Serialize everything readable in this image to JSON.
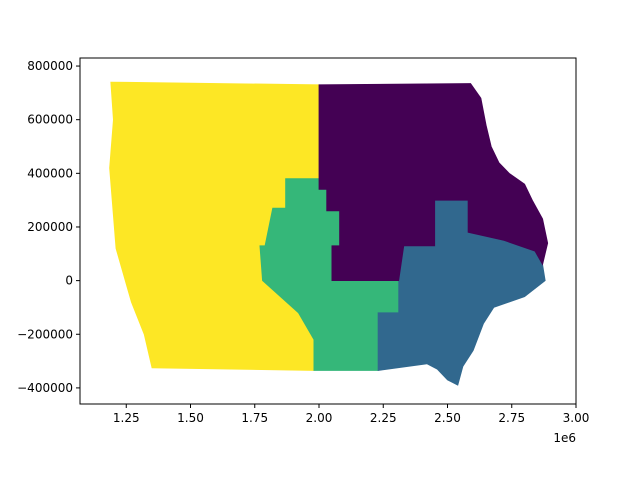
{
  "chart_data": {
    "type": "choropleth",
    "xlim": [
      1070000,
      3000000
    ],
    "ylim": [
      -460000,
      830000
    ],
    "x_ticks": [
      1250000,
      1500000,
      1750000,
      2000000,
      2250000,
      2500000,
      2750000,
      3000000
    ],
    "x_tick_labels": [
      "1.25",
      "1.50",
      "1.75",
      "2.00",
      "2.25",
      "2.50",
      "2.75",
      "3.00"
    ],
    "x_offset_label": "1e6",
    "y_ticks": [
      -400000,
      -200000,
      0,
      200000,
      400000,
      600000,
      800000
    ],
    "y_tick_labels": [
      "−400000",
      "−200000",
      "0",
      "200000",
      "400000",
      "600000",
      "800000"
    ],
    "colormap": "viridis",
    "regions": [
      {
        "color": "#fde725",
        "outline": [
          [
            1190000,
            740000
          ],
          [
            2000000,
            730000
          ],
          [
            2000000,
            380000
          ],
          [
            1870000,
            380000
          ],
          [
            1870000,
            270000
          ],
          [
            1820000,
            270000
          ],
          [
            1790000,
            130000
          ],
          [
            1770000,
            130000
          ],
          [
            1780000,
            0
          ],
          [
            1920000,
            -120000
          ],
          [
            1980000,
            -220000
          ],
          [
            1980000,
            -335000
          ],
          [
            1350000,
            -325000
          ],
          [
            1320000,
            -200000
          ],
          [
            1270000,
            -80000
          ],
          [
            1210000,
            120000
          ],
          [
            1185000,
            420000
          ],
          [
            1200000,
            600000
          ]
        ]
      },
      {
        "color": "#35b779",
        "outline": [
          [
            1870000,
            380000
          ],
          [
            2000000,
            380000
          ],
          [
            2000000,
            340000
          ],
          [
            2030000,
            340000
          ],
          [
            2030000,
            260000
          ],
          [
            2080000,
            260000
          ],
          [
            2080000,
            130000
          ],
          [
            2050000,
            130000
          ],
          [
            2050000,
            0
          ],
          [
            2310000,
            0
          ],
          [
            2310000,
            -120000
          ],
          [
            2230000,
            -120000
          ],
          [
            2230000,
            -335000
          ],
          [
            1980000,
            -335000
          ],
          [
            1980000,
            -220000
          ],
          [
            1920000,
            -120000
          ],
          [
            1780000,
            0
          ],
          [
            1770000,
            130000
          ],
          [
            1790000,
            130000
          ],
          [
            1820000,
            270000
          ],
          [
            1870000,
            270000
          ]
        ]
      },
      {
        "color": "#31688e",
        "outline": [
          [
            2310000,
            0
          ],
          [
            2330000,
            130000
          ],
          [
            2450000,
            130000
          ],
          [
            2450000,
            300000
          ],
          [
            2580000,
            300000
          ],
          [
            2580000,
            180000
          ],
          [
            2720000,
            150000
          ],
          [
            2840000,
            110000
          ],
          [
            2870000,
            60000
          ],
          [
            2880000,
            0
          ],
          [
            2800000,
            -60000
          ],
          [
            2680000,
            -100000
          ],
          [
            2640000,
            -160000
          ],
          [
            2600000,
            -260000
          ],
          [
            2560000,
            -320000
          ],
          [
            2540000,
            -390000
          ],
          [
            2500000,
            -370000
          ],
          [
            2460000,
            -330000
          ],
          [
            2420000,
            -310000
          ],
          [
            2230000,
            -335000
          ],
          [
            2230000,
            -120000
          ],
          [
            2310000,
            -120000
          ]
        ]
      },
      {
        "color": "#440154",
        "outline": [
          [
            2000000,
            730000
          ],
          [
            2590000,
            735000
          ],
          [
            2630000,
            680000
          ],
          [
            2650000,
            580000
          ],
          [
            2670000,
            500000
          ],
          [
            2700000,
            440000
          ],
          [
            2740000,
            400000
          ],
          [
            2800000,
            360000
          ],
          [
            2830000,
            300000
          ],
          [
            2870000,
            230000
          ],
          [
            2890000,
            140000
          ],
          [
            2870000,
            60000
          ],
          [
            2840000,
            110000
          ],
          [
            2720000,
            150000
          ],
          [
            2580000,
            180000
          ],
          [
            2580000,
            300000
          ],
          [
            2450000,
            300000
          ],
          [
            2450000,
            130000
          ],
          [
            2330000,
            130000
          ],
          [
            2310000,
            0
          ],
          [
            2050000,
            0
          ],
          [
            2050000,
            130000
          ],
          [
            2080000,
            130000
          ],
          [
            2080000,
            260000
          ],
          [
            2030000,
            260000
          ],
          [
            2030000,
            340000
          ],
          [
            2000000,
            340000
          ]
        ]
      }
    ]
  }
}
